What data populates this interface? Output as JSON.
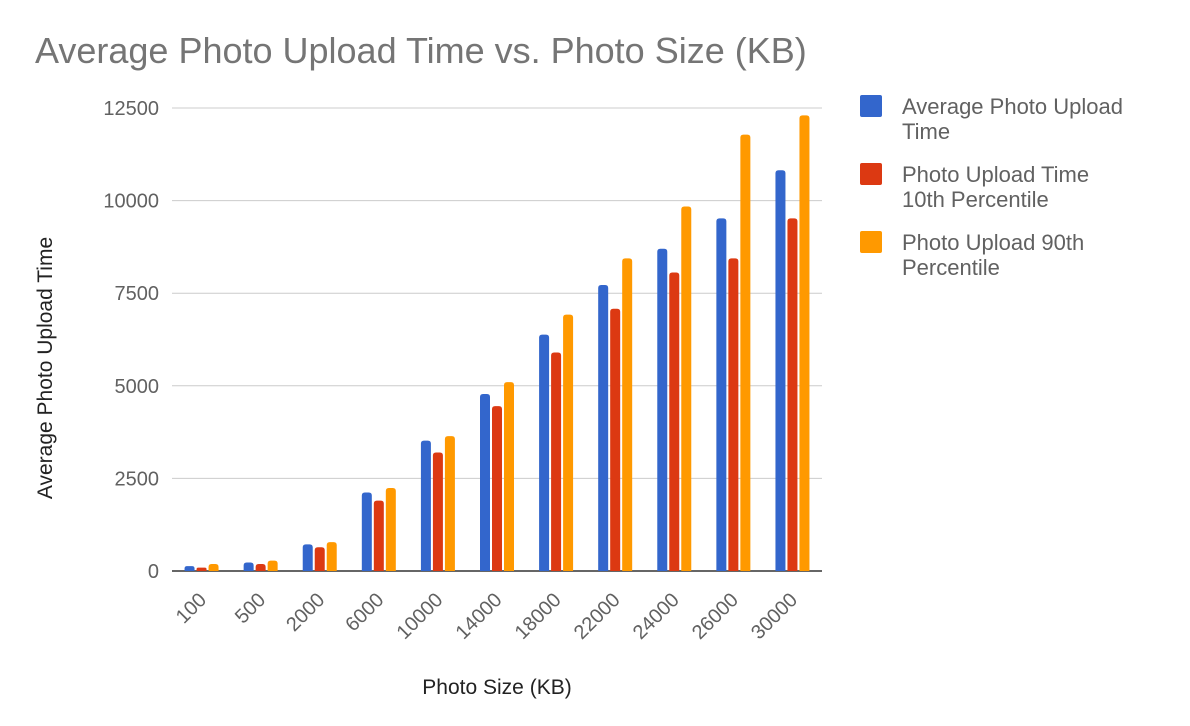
{
  "chart_data": {
    "type": "bar",
    "title": "Average Photo Upload Time vs. Photo Size (KB)",
    "xlabel": "Photo Size (KB)",
    "ylabel": "Average Photo Upload Time",
    "categories": [
      "100",
      "500",
      "2000",
      "6000",
      "10000",
      "14000",
      "18000",
      "22000",
      "24000",
      "26000",
      "30000"
    ],
    "ylim": [
      0,
      12500
    ],
    "yticks": [
      "0",
      "2500",
      "5000",
      "7500",
      "10000",
      "12500"
    ],
    "grid": true,
    "legend_position": "right",
    "series": [
      {
        "name": "Average Photo Upload Time",
        "color": "#3366cc",
        "values": [
          130,
          230,
          720,
          2120,
          3520,
          4780,
          6380,
          7720,
          8700,
          9520,
          10820
        ]
      },
      {
        "name": "Photo Upload Time 10th Percentile",
        "color": "#dc3912",
        "values": [
          90,
          190,
          640,
          1900,
          3200,
          4450,
          5900,
          7080,
          8060,
          8440,
          9520
        ]
      },
      {
        "name": "Photo Upload 90th Percentile",
        "color": "#ff9900",
        "values": [
          190,
          280,
          780,
          2240,
          3640,
          5100,
          6920,
          8440,
          9840,
          11780,
          12300
        ]
      }
    ]
  }
}
